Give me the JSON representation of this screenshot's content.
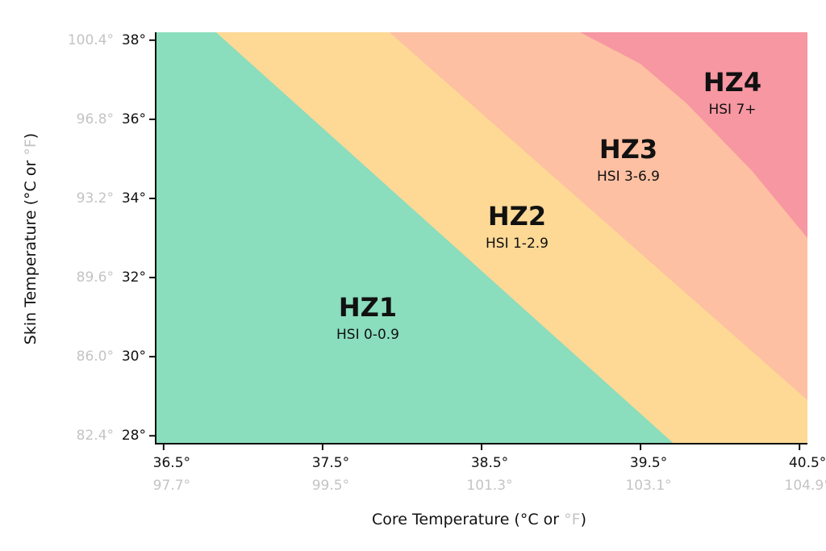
{
  "chart_data": {
    "type": "zones",
    "xlim": [
      36.45,
      40.55
    ],
    "ylim": [
      27.8,
      38.2
    ],
    "xticks": [
      {
        "value": 36.5,
        "label": "36.5°",
        "alt_label": "97.7°"
      },
      {
        "value": 37.5,
        "label": "37.5°",
        "alt_label": "99.5°"
      },
      {
        "value": 38.5,
        "label": "38.5°",
        "alt_label": "101.3°"
      },
      {
        "value": 39.5,
        "label": "39.5°",
        "alt_label": "103.1°"
      },
      {
        "value": 40.5,
        "label": "40.5°",
        "alt_label": "104.9°"
      }
    ],
    "yticks": [
      {
        "value": 28,
        "label": "28°",
        "alt_label": "82.4°"
      },
      {
        "value": 30,
        "label": "30°",
        "alt_label": "86.0°"
      },
      {
        "value": 32,
        "label": "32°",
        "alt_label": "89.6°"
      },
      {
        "value": 34,
        "label": "34°",
        "alt_label": "93.2°"
      },
      {
        "value": 36,
        "label": "36°",
        "alt_label": "96.8°"
      },
      {
        "value": 38,
        "label": "38°",
        "alt_label": "100.4°"
      }
    ],
    "x_label": [
      "Core Temperature (°C or ",
      "°F",
      ")"
    ],
    "y_label": [
      "Skin Temperature (°C or ",
      "°F",
      ")"
    ],
    "zones": [
      {
        "name": "HZ1",
        "label": "HSI 0-0.9",
        "color": "#8addbd"
      },
      {
        "name": "HZ2",
        "label": "HSI 1-2.9",
        "color": "#fdd995"
      },
      {
        "name": "HZ3",
        "label": "HSI 3-6.9",
        "color": "#fdc0a2"
      },
      {
        "name": "HZ4",
        "label": "HSI 7+",
        "color": "#f797a2"
      }
    ],
    "boundaries": [
      {
        "x": [
          36.83,
          39.71
        ],
        "y": [
          38.2,
          27.8
        ]
      },
      {
        "x": [
          37.92,
          40.55
        ],
        "y": [
          38.2,
          28.9
        ]
      },
      {
        "x": [
          39.12,
          39.5,
          39.79,
          40.2,
          40.55
        ],
        "y": [
          38.2,
          37.4,
          36.4,
          34.7,
          33.0
        ]
      }
    ]
  }
}
